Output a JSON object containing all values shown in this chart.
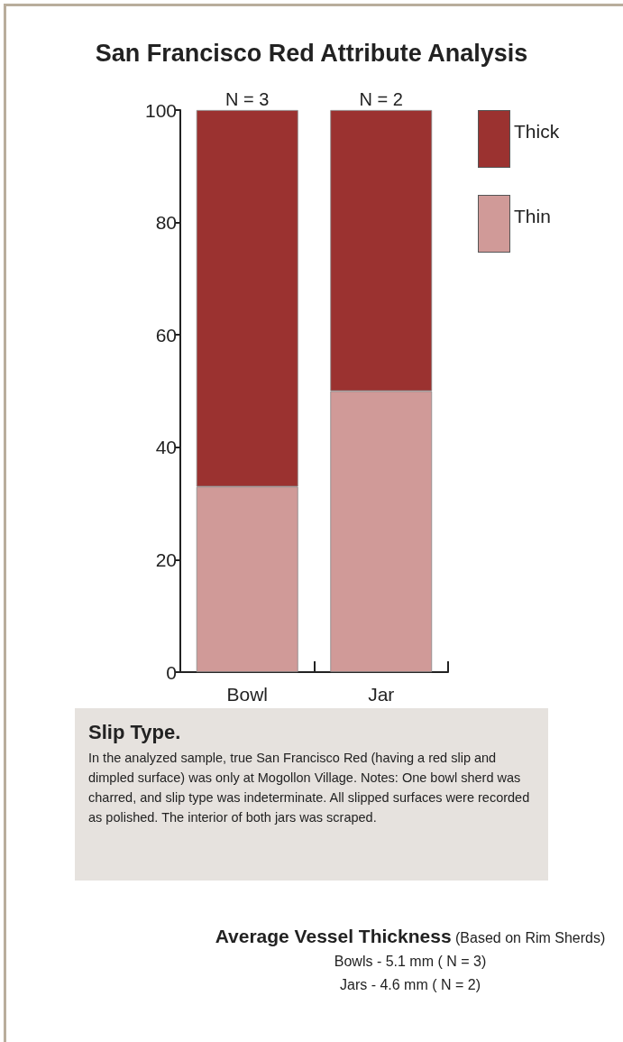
{
  "chart_data": {
    "type": "bar",
    "title": "San Francisco Red Attribute Analysis",
    "categories": [
      "Bowl",
      "Jar"
    ],
    "stacked": true,
    "series": [
      {
        "name": "Thin",
        "color": "#d09a98",
        "values": [
          33,
          50
        ]
      },
      {
        "name": "Thick",
        "color": "#9b3230",
        "values": [
          67,
          50
        ]
      }
    ],
    "ylim": [
      0,
      100
    ],
    "yticks": [
      0,
      20,
      40,
      60,
      80,
      100
    ],
    "grid": false,
    "legend": "top right",
    "annotations": [
      {
        "text": "N = 3",
        "x": "Bowl",
        "y": 100
      },
      {
        "text": "N = 2",
        "x": "Jar",
        "y": 100
      },
      "Slip Type.",
      " In the analyzed sample, true San Francisco Red (having a red slip and dimpled surface) was only at Mogollon Village. Notes: One bowl sherd was charred, and slip type was indeterminate. All slipped surfaces were recorded as polished. The interior of both jars was scraped.",
      "Average Vessel Thickness",
      "(Based on Rim Sherds)",
      "Bowls -  5.1 mm ( N = 3)",
      "Jars -  4.6 mm ( N = 2)"
    ]
  }
}
